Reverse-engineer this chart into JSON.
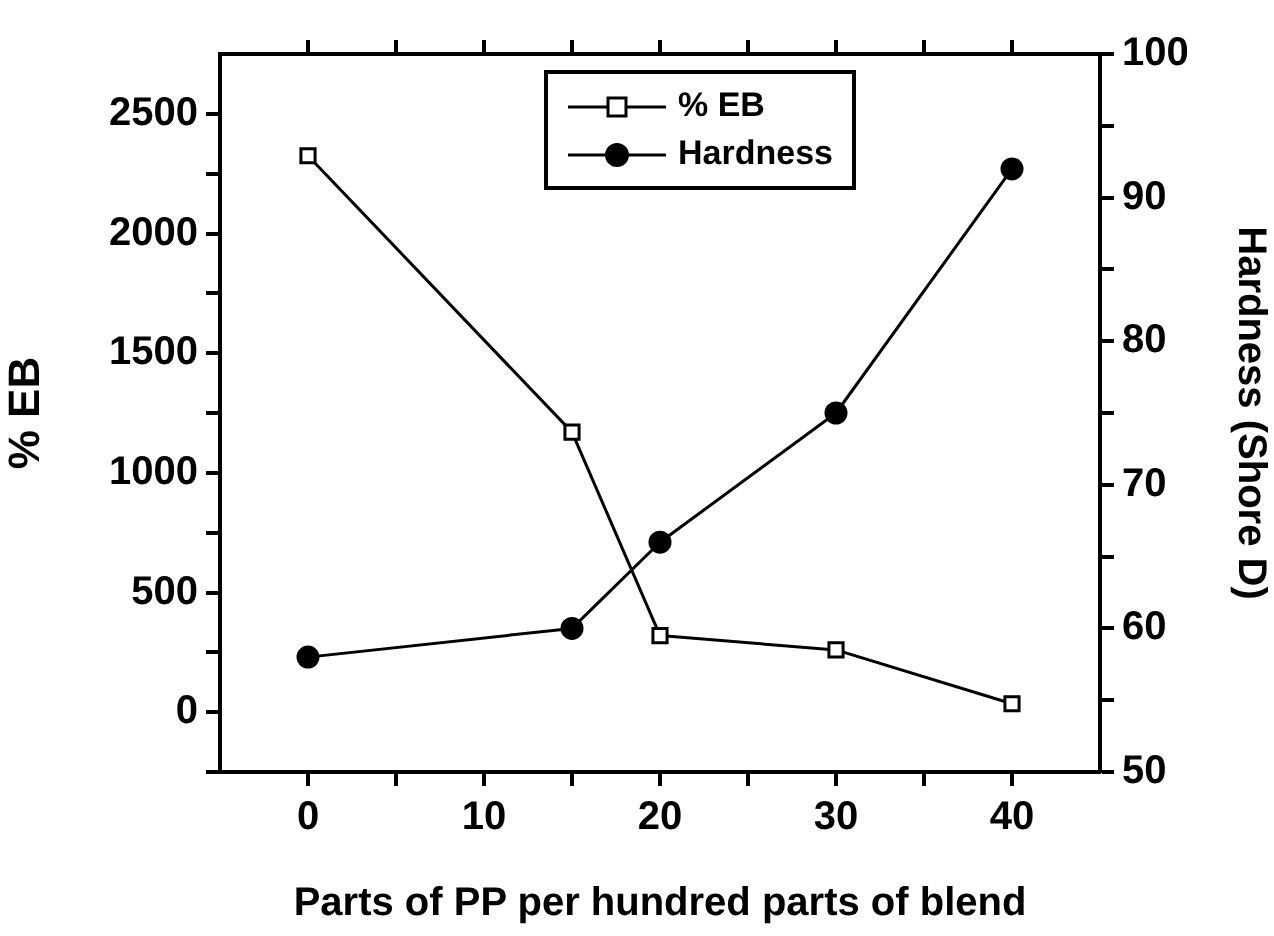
{
  "chart_data": {
    "type": "line",
    "xlabel": "Parts of PP per hundred parts of blend",
    "ylabel": "% EB",
    "y2label": "Hardness (Shore D)",
    "x": [
      0,
      15,
      20,
      30,
      40
    ],
    "series": [
      {
        "name": "% EB",
        "color": "#000000",
        "marker": "square",
        "values": [
          2325,
          1170,
          320,
          260,
          35
        ]
      },
      {
        "name": "Hardness",
        "color": "#000000",
        "marker": "circle",
        "axis": "y2",
        "values": [
          58,
          60,
          66,
          75,
          92
        ]
      }
    ],
    "xlim": [
      -5,
      45
    ],
    "xticks": [
      0,
      {
        "value": 5,
        "label": null
      },
      10,
      {
        "value": 15,
        "label": null
      },
      20,
      {
        "value": 25,
        "label": null
      },
      30,
      {
        "value": 35,
        "label": null
      },
      40
    ],
    "ylim": [
      -250,
      2750
    ],
    "yticks": [
      {
        "value": -250,
        "label": null
      },
      0,
      {
        "value": 250,
        "label": null
      },
      500,
      {
        "value": 750,
        "label": null
      },
      1000,
      {
        "value": 1250,
        "label": null
      },
      1500,
      {
        "value": 1750,
        "label": null
      },
      2000,
      {
        "value": 2250,
        "label": null
      },
      2500
    ],
    "y2lim": [
      50,
      100
    ],
    "y2ticks": [
      50,
      {
        "value": 55,
        "label": null
      },
      60,
      {
        "value": 65,
        "label": null
      },
      70,
      {
        "value": 75,
        "label": null
      },
      80,
      {
        "value": 85,
        "label": null
      },
      90,
      {
        "value": 95,
        "label": null
      },
      100
    ],
    "legend": "top",
    "grid": false,
    "line_style": "solid"
  }
}
